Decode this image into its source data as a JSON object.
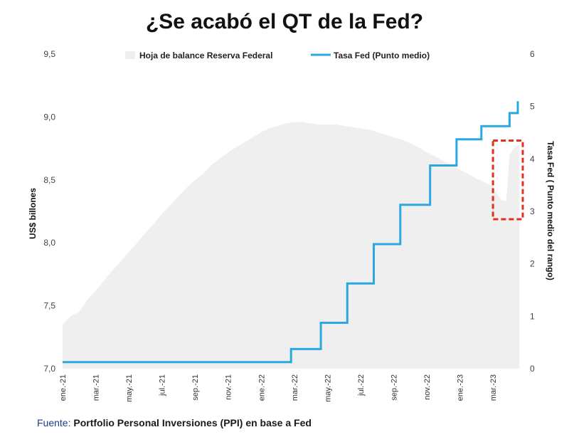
{
  "chart_data": {
    "type": "area+step-line",
    "title": "¿Se acabó el QT de la Fed?",
    "legend": [
      {
        "label": "Hoja de balance Reserva Federal",
        "color": "#efefef",
        "kind": "area"
      },
      {
        "label": "Tasa Fed (Punto medio)",
        "color": "#2aa8e0",
        "kind": "line"
      }
    ],
    "left_axis": {
      "title": "US$ billones",
      "min": 7.0,
      "max": 9.5,
      "ticks": [
        7.0,
        7.5,
        8.0,
        8.5,
        9.0,
        9.5
      ],
      "tick_labels": [
        "7,0",
        "7,5",
        "8,0",
        "8,5",
        "9,0",
        "9,5"
      ]
    },
    "right_axis": {
      "title": "Tasa Fed ( Punto medio del rango)",
      "min": 0,
      "max": 6,
      "ticks": [
        0,
        1,
        2,
        3,
        4,
        5,
        6
      ],
      "tick_labels": [
        "0",
        "1",
        "2",
        "3",
        "4",
        "5",
        "6"
      ]
    },
    "x_axis": {
      "tick_labels": [
        "ene.-21",
        "mar.-21",
        "may.-21",
        "jul.-21",
        "sep.-21",
        "nov.-21",
        "ene.-22",
        "mar.-22",
        "may.-22",
        "jul.-22",
        "sep.-22",
        "nov.-22",
        "ene.-23",
        "mar.-23"
      ],
      "tick_month_index": [
        0,
        2,
        4,
        6,
        8,
        10,
        12,
        14,
        16,
        18,
        20,
        22,
        24,
        26
      ],
      "month_range": [
        0,
        27.8
      ]
    },
    "balance_sheet": {
      "name": "Hoja de balance Reserva Federal",
      "unit": "US$ billones",
      "month_index": [
        0,
        0.5,
        1,
        1.5,
        2,
        2.5,
        3,
        3.5,
        4,
        4.5,
        5,
        5.5,
        6,
        6.5,
        7,
        7.5,
        8,
        8.5,
        9,
        9.5,
        10,
        10.5,
        11,
        11.5,
        12,
        12.5,
        13,
        13.5,
        14,
        14.5,
        15,
        15.5,
        16,
        16.5,
        17,
        17.5,
        18,
        18.5,
        19,
        19.5,
        20,
        20.5,
        21,
        21.5,
        22,
        22.5,
        23,
        23.5,
        24,
        24.5,
        25,
        25.5,
        26,
        26.3,
        26.5,
        26.8,
        27,
        27.3,
        27.6
      ],
      "values": [
        7.35,
        7.42,
        7.45,
        7.55,
        7.62,
        7.7,
        7.78,
        7.85,
        7.93,
        8.0,
        8.08,
        8.15,
        8.23,
        8.3,
        8.37,
        8.44,
        8.5,
        8.55,
        8.62,
        8.67,
        8.72,
        8.76,
        8.8,
        8.84,
        8.88,
        8.91,
        8.93,
        8.95,
        8.96,
        8.96,
        8.95,
        8.94,
        8.94,
        8.94,
        8.93,
        8.92,
        8.91,
        8.9,
        8.88,
        8.86,
        8.84,
        8.82,
        8.79,
        8.76,
        8.72,
        8.69,
        8.65,
        8.62,
        8.58,
        8.55,
        8.51,
        8.48,
        8.45,
        8.38,
        8.34,
        8.33,
        8.7,
        8.76,
        8.78
      ]
    },
    "fed_rate": {
      "name": "Tasa Fed (Punto medio)",
      "unit": "%",
      "steps": [
        {
          "from": 0,
          "to": 13.8,
          "value": 0.125
        },
        {
          "from": 13.8,
          "to": 15.6,
          "value": 0.375
        },
        {
          "from": 15.6,
          "to": 17.2,
          "value": 0.875
        },
        {
          "from": 17.2,
          "to": 18.8,
          "value": 1.625
        },
        {
          "from": 18.8,
          "to": 20.4,
          "value": 2.375
        },
        {
          "from": 20.4,
          "to": 22.2,
          "value": 3.125
        },
        {
          "from": 22.2,
          "to": 23.8,
          "value": 3.875
        },
        {
          "from": 23.8,
          "to": 25.3,
          "value": 4.375
        },
        {
          "from": 25.3,
          "to": 27.0,
          "value": 4.625
        },
        {
          "from": 27.0,
          "to": 27.5,
          "value": 4.875
        }
      ]
    },
    "annotation": {
      "type": "dashed-box",
      "color": "#e0301e",
      "description": "Rebote del balance en mar.-23",
      "month_range": [
        26.0,
        27.8
      ],
      "rate_range": [
        2.85,
        4.35
      ]
    }
  },
  "source": {
    "label": "Fuente:",
    "text": "Portfolio Personal Inversiones (PPI) en base a Fed"
  }
}
